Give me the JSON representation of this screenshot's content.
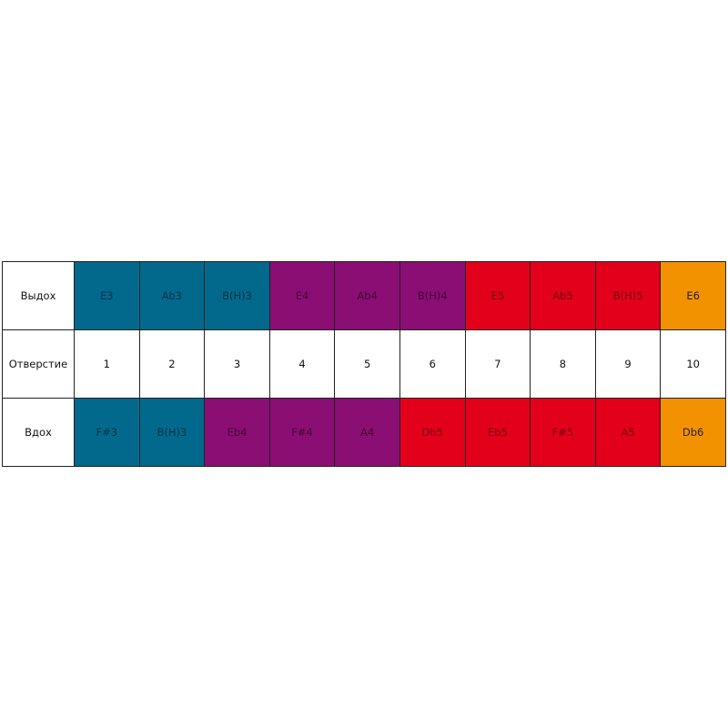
{
  "colors": {
    "teal": "#02698c",
    "purple": "#8a0e74",
    "red": "#e3001b",
    "orange": "#f39200",
    "white": "#ffffff"
  },
  "rows": [
    {
      "label": "Выдох",
      "cells": [
        {
          "text": "E3",
          "color": "teal"
        },
        {
          "text": "Ab3",
          "color": "teal"
        },
        {
          "text": "B(H)3",
          "color": "teal"
        },
        {
          "text": "E4",
          "color": "purple"
        },
        {
          "text": "Ab4",
          "color": "purple"
        },
        {
          "text": "B(H)4",
          "color": "purple"
        },
        {
          "text": "E5",
          "color": "red"
        },
        {
          "text": "Ab5",
          "color": "red"
        },
        {
          "text": "B(H)5",
          "color": "red"
        },
        {
          "text": "E6",
          "color": "orange"
        }
      ]
    },
    {
      "label": "Отверстие",
      "cells": [
        {
          "text": "1",
          "color": "white"
        },
        {
          "text": "2",
          "color": "white"
        },
        {
          "text": "3",
          "color": "white"
        },
        {
          "text": "4",
          "color": "white"
        },
        {
          "text": "5",
          "color": "white"
        },
        {
          "text": "6",
          "color": "white"
        },
        {
          "text": "7",
          "color": "white"
        },
        {
          "text": "8",
          "color": "white"
        },
        {
          "text": "9",
          "color": "white"
        },
        {
          "text": "10",
          "color": "white"
        }
      ]
    },
    {
      "label": "Вдох",
      "cells": [
        {
          "text": "F#3",
          "color": "teal"
        },
        {
          "text": "B(H)3",
          "color": "teal"
        },
        {
          "text": "Eb4",
          "color": "purple"
        },
        {
          "text": "F#4",
          "color": "purple"
        },
        {
          "text": "A4",
          "color": "purple"
        },
        {
          "text": "Db5",
          "color": "red"
        },
        {
          "text": "Eb5",
          "color": "red"
        },
        {
          "text": "F#5",
          "color": "red"
        },
        {
          "text": "A5",
          "color": "red"
        },
        {
          "text": "Db6",
          "color": "orange"
        }
      ]
    }
  ]
}
